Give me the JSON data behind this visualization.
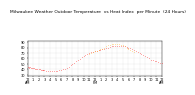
{
  "title": "Milwaukee Weather Outdoor Temperature  vs Heat Index  per Minute  (24 Hours)",
  "title_fontsize": 3.2,
  "bg_color": "#ffffff",
  "line1_color": "#ff0000",
  "line2_color": "#ffa500",
  "tick_fontsize": 2.5,
  "ylim": [
    28,
    92
  ],
  "xlim": [
    0,
    1440
  ],
  "yticks": [
    30,
    40,
    50,
    60,
    70,
    80,
    90
  ],
  "temp_x": [
    0,
    10,
    20,
    30,
    40,
    50,
    60,
    70,
    80,
    90,
    100,
    120,
    130,
    140,
    150,
    160,
    170,
    180,
    200,
    220,
    240,
    260,
    280,
    300,
    320,
    340,
    360,
    380,
    400,
    420,
    440,
    460,
    480,
    500,
    520,
    540,
    560,
    580,
    600,
    620,
    640,
    660,
    680,
    700,
    720,
    740,
    760,
    780,
    800,
    820,
    840,
    860,
    880,
    900,
    920,
    940,
    960,
    980,
    1000,
    1020,
    1040,
    1060,
    1080,
    1100,
    1120,
    1140,
    1160,
    1180,
    1200,
    1220,
    1240,
    1260,
    1280,
    1300,
    1320,
    1340,
    1360,
    1380,
    1400,
    1420,
    1440
  ],
  "temp_y": [
    45,
    44,
    43,
    44,
    43,
    43,
    42,
    42,
    41,
    41,
    41,
    40,
    40,
    39,
    39,
    38,
    38,
    38,
    37,
    37,
    36,
    36,
    36,
    36,
    37,
    38,
    39,
    40,
    41,
    43,
    45,
    47,
    50,
    52,
    55,
    57,
    59,
    62,
    64,
    66,
    68,
    70,
    71,
    72,
    73,
    74,
    75,
    76,
    77,
    78,
    79,
    80,
    81,
    82,
    82,
    83,
    83,
    83,
    83,
    82,
    82,
    81,
    80,
    79,
    78,
    76,
    74,
    72,
    70,
    68,
    66,
    64,
    62,
    60,
    58,
    57,
    56,
    55,
    54,
    52,
    51
  ],
  "hi_x": [
    660,
    680,
    700,
    720,
    740,
    760,
    780,
    800,
    820,
    840,
    860,
    880,
    900,
    920,
    940,
    960,
    980,
    1000,
    1020,
    1040,
    1060,
    1080,
    1100,
    1120,
    1140
  ],
  "hi_y": [
    68,
    70,
    71,
    73,
    74,
    76,
    77,
    78,
    80,
    82,
    84,
    85,
    86,
    86,
    87,
    87,
    86,
    85,
    84,
    82,
    80,
    78,
    76,
    74,
    72
  ],
  "xtick_positions": [
    0,
    60,
    120,
    180,
    240,
    300,
    360,
    420,
    480,
    540,
    600,
    660,
    720,
    780,
    840,
    900,
    960,
    1020,
    1080,
    1140,
    1200,
    1260,
    1320,
    1380,
    1440
  ],
  "xtick_labels": [
    "12\nAM",
    "1",
    "2",
    "3",
    "4",
    "5",
    "6",
    "7",
    "8",
    "9",
    "10",
    "11",
    "12\nPM",
    "1",
    "2",
    "3",
    "4",
    "5",
    "6",
    "7",
    "8",
    "9",
    "10",
    "11",
    "12\nAM"
  ]
}
